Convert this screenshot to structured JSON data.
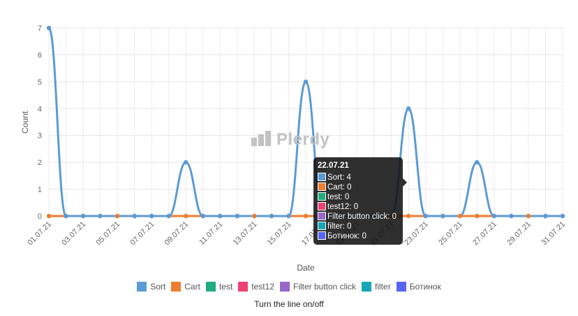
{
  "chart_data": {
    "type": "line",
    "xlabel": "Date",
    "ylabel": "Count",
    "ylim": [
      0,
      7
    ],
    "yticks": [
      "0",
      "1",
      "2",
      "3",
      "4",
      "5",
      "6",
      "7"
    ],
    "grid": true,
    "legend_position": "bottom",
    "categories": [
      "01.07.21",
      "02.07.21",
      "03.07.21",
      "04.07.21",
      "05.07.21",
      "06.07.21",
      "07.07.21",
      "08.07.21",
      "09.07.21",
      "10.07.21",
      "11.07.21",
      "12.07.21",
      "13.07.21",
      "14.07.21",
      "15.07.21",
      "16.07.21",
      "17.07.21",
      "18.07.21",
      "19.07.21",
      "20.07.21",
      "21.07.21",
      "22.07.21",
      "23.07.21",
      "24.07.21",
      "25.07.21",
      "26.07.21",
      "27.07.21",
      "28.07.21",
      "29.07.21",
      "30.07.21",
      "31.07.21"
    ],
    "tick_labels": [
      "01.07.21",
      "03.07.21",
      "05.07.21",
      "07.07.21",
      "09.07.21",
      "11.07.21",
      "13.07.21",
      "15.07.21",
      "17.07.21",
      "19.07.21",
      "21.07.21",
      "23.07.21",
      "25.07.21",
      "27.07.21",
      "29.07.21",
      "31.07.21"
    ],
    "series": [
      {
        "name": "Sort",
        "color": "#5b9bd5",
        "values": [
          7,
          0,
          0,
          0,
          0,
          0,
          0,
          0,
          2,
          0,
          0,
          0,
          0,
          0,
          0,
          5,
          0,
          0,
          0,
          0,
          0,
          4,
          0,
          0,
          0,
          2,
          0,
          0,
          0,
          0,
          0
        ]
      },
      {
        "name": "Cart",
        "color": "#ed7d31",
        "values": [
          0,
          0,
          0,
          0,
          0,
          0,
          0,
          0,
          0,
          0,
          0,
          0,
          0,
          0,
          0,
          0,
          0,
          0,
          0,
          0,
          0,
          0,
          0,
          0,
          0,
          0,
          0,
          0,
          0,
          0,
          0
        ]
      },
      {
        "name": "test",
        "color": "#1fad7e",
        "values": [
          0,
          0,
          0,
          0,
          0,
          0,
          0,
          0,
          0,
          0,
          0,
          0,
          0,
          0,
          0,
          0,
          0,
          0,
          0,
          0,
          0,
          0,
          0,
          0,
          0,
          0,
          0,
          0,
          0,
          0,
          0
        ]
      },
      {
        "name": "test12",
        "color": "#ef4274",
        "values": [
          0,
          0,
          0,
          0,
          0,
          0,
          0,
          0,
          0,
          0,
          0,
          0,
          0,
          0,
          0,
          0,
          0,
          0,
          0,
          0,
          0,
          0,
          0,
          0,
          0,
          0,
          0,
          0,
          0,
          0,
          0
        ]
      },
      {
        "name": "Filter button click",
        "color": "#9966cc",
        "values": [
          0,
          0,
          0,
          0,
          0,
          0,
          0,
          0,
          0,
          0,
          0,
          0,
          0,
          0,
          0,
          0,
          0,
          0,
          0,
          0,
          0,
          0,
          0,
          0,
          0,
          0,
          0,
          0,
          0,
          0,
          0
        ]
      },
      {
        "name": "filter",
        "color": "#17a5b8",
        "values": [
          0,
          0,
          0,
          0,
          0,
          0,
          0,
          0,
          0,
          0,
          0,
          0,
          0,
          0,
          0,
          0,
          0,
          0,
          0,
          0,
          0,
          0,
          0,
          0,
          0,
          0,
          0,
          0,
          0,
          0,
          0
        ]
      },
      {
        "name": "Ботинок",
        "color": "#5865f2",
        "values": [
          0,
          0,
          0,
          0,
          0,
          0,
          0,
          0,
          0,
          0,
          0,
          0,
          0,
          0,
          0,
          0,
          0,
          0,
          0,
          0,
          0,
          0,
          0,
          0,
          0,
          0,
          0,
          0,
          0,
          0,
          0
        ]
      }
    ]
  },
  "tooltip": {
    "title": "22.07.21",
    "rows": [
      {
        "text": "Sort: 4",
        "color": "#5b9bd5"
      },
      {
        "text": "Cart: 0",
        "color": "#ed7d31"
      },
      {
        "text": "test: 0",
        "color": "#1fad7e"
      },
      {
        "text": "test12: 0",
        "color": "#ef4274"
      },
      {
        "text": "Filter button click: 0",
        "color": "#9966cc"
      },
      {
        "text": "filter: 0",
        "color": "#17a5b8"
      },
      {
        "text": "Ботинок: 0",
        "color": "#5865f2"
      }
    ]
  },
  "watermark": "Plerdy",
  "hint": "Turn the line on/off"
}
